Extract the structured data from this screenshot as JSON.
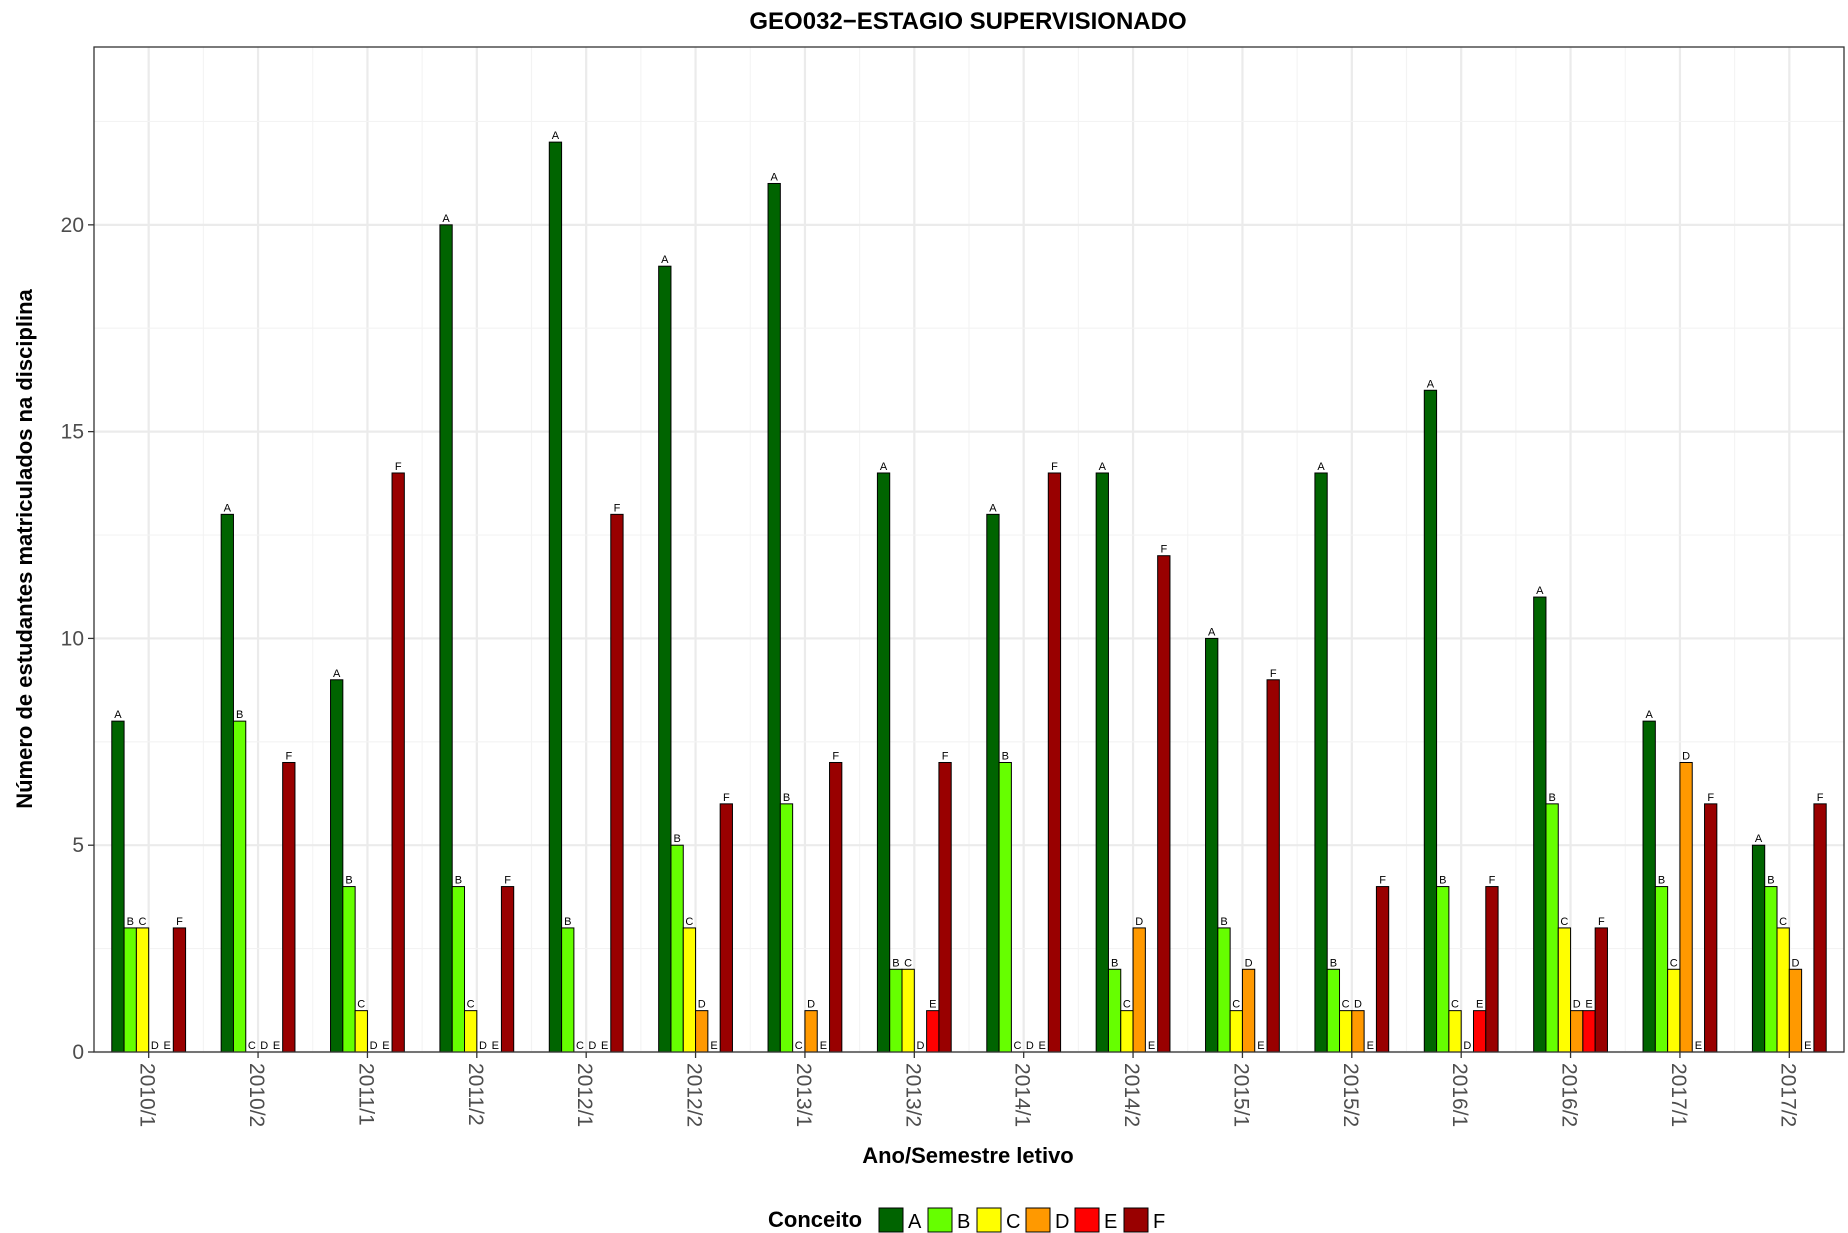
{
  "chart_data": {
    "type": "bar",
    "title": "GEO032−ESTAGIO SUPERVISIONADO",
    "xlabel": "Ano/Semestre letivo",
    "ylabel": "Número de estudantes matriculados na disciplina",
    "ylim": [
      0,
      24.3
    ],
    "yticks": [
      0,
      5,
      10,
      15,
      20
    ],
    "grid": true,
    "legend_position": "bottom",
    "legend_title": "Conceito",
    "categories": [
      "2010/1",
      "2010/2",
      "2011/1",
      "2011/2",
      "2012/1",
      "2012/2",
      "2013/1",
      "2013/2",
      "2014/1",
      "2014/2",
      "2015/1",
      "2015/2",
      "2016/1",
      "2016/2",
      "2017/1",
      "2017/2"
    ],
    "series": [
      {
        "name": "A",
        "color": "#006400",
        "values": [
          8,
          13,
          9,
          20,
          22,
          19,
          21,
          14,
          13,
          14,
          10,
          14,
          16,
          11,
          8,
          5
        ]
      },
      {
        "name": "B",
        "color": "#66ff00",
        "values": [
          3,
          8,
          4,
          4,
          3,
          5,
          6,
          2,
          7,
          2,
          3,
          2,
          4,
          6,
          4,
          4
        ]
      },
      {
        "name": "C",
        "color": "#ffff00",
        "values": [
          3,
          0,
          1,
          1,
          0,
          3,
          0,
          2,
          0,
          1,
          1,
          1,
          1,
          3,
          2,
          3
        ]
      },
      {
        "name": "D",
        "color": "#ff9900",
        "values": [
          0,
          0,
          0,
          0,
          0,
          1,
          1,
          0,
          0,
          3,
          2,
          1,
          0,
          1,
          7,
          2
        ]
      },
      {
        "name": "E",
        "color": "#ff0000",
        "values": [
          0,
          0,
          0,
          0,
          0,
          0,
          0,
          1,
          0,
          0,
          0,
          0,
          1,
          1,
          0,
          0
        ]
      },
      {
        "name": "F",
        "color": "#990000",
        "values": [
          3,
          7,
          14,
          4,
          13,
          6,
          7,
          7,
          14,
          12,
          9,
          4,
          4,
          3,
          6,
          6
        ]
      }
    ]
  }
}
